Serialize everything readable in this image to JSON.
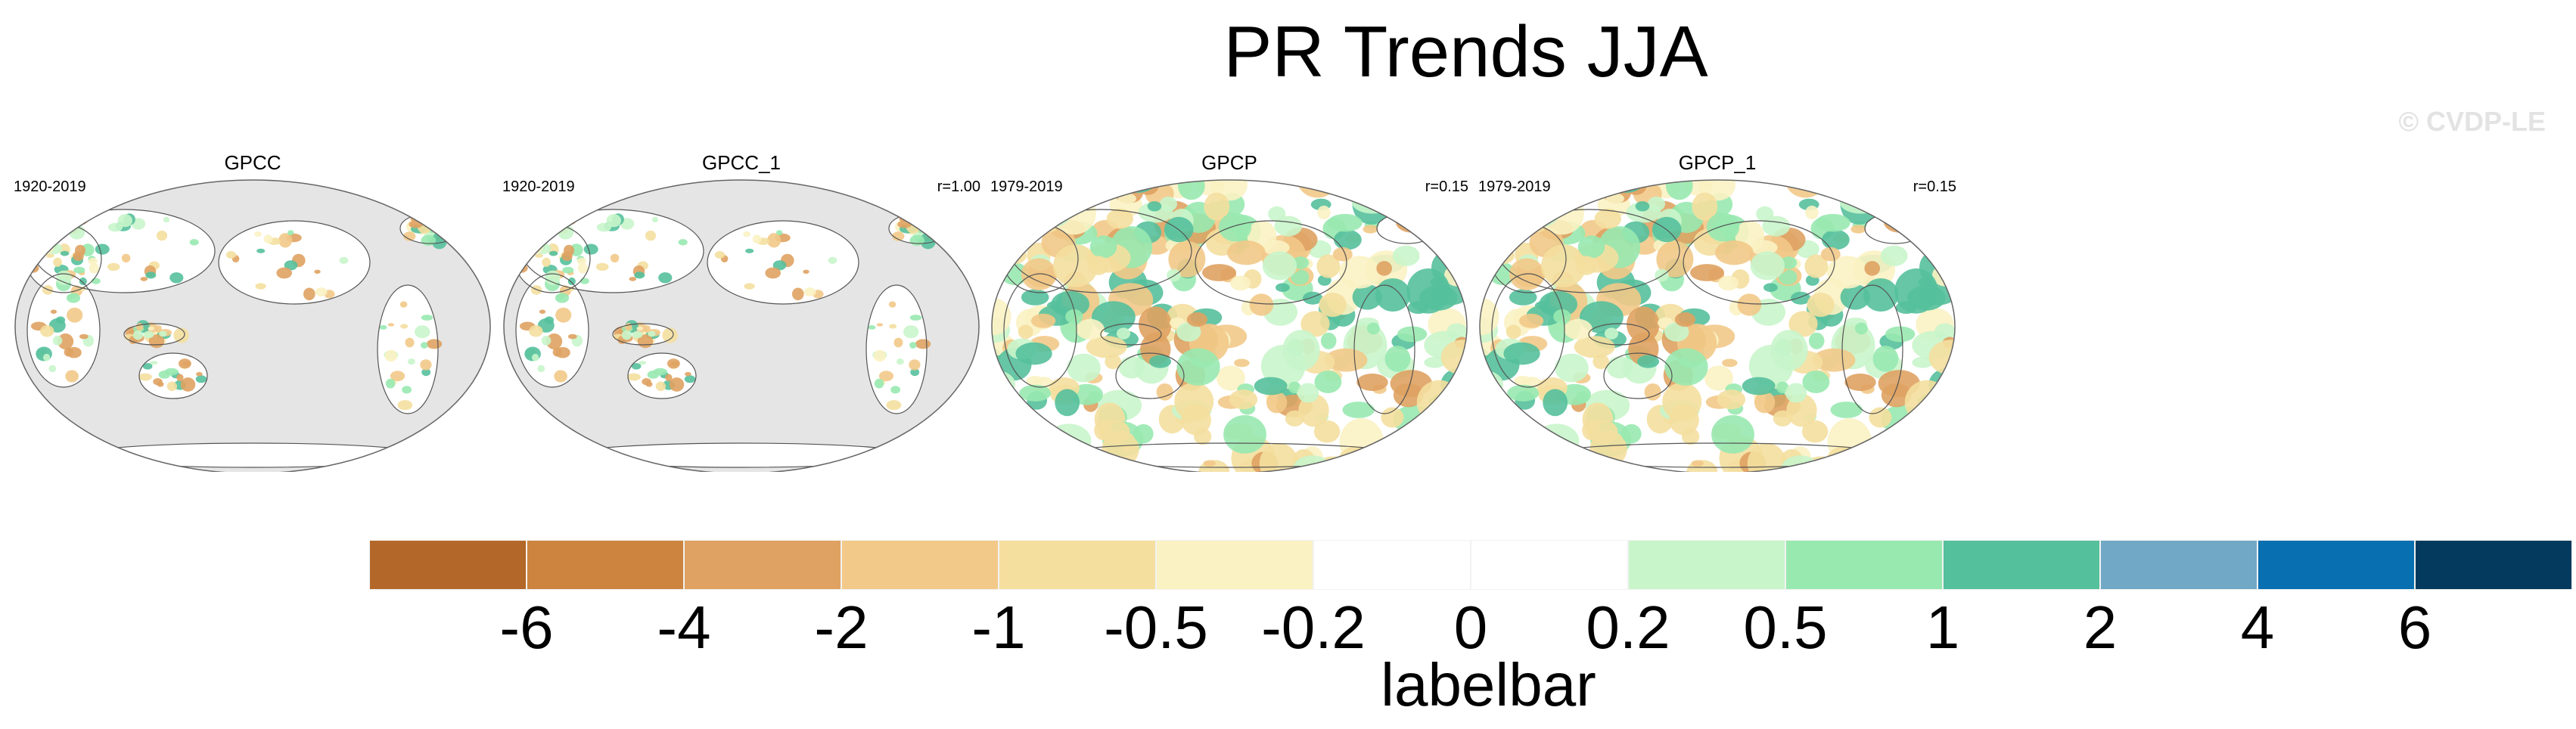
{
  "title": "PR Trends JJA",
  "watermark": "© CVDP-LE",
  "panels": [
    {
      "name": "GPCC",
      "period": "1920-2019",
      "r": "",
      "coverage": "land"
    },
    {
      "name": "GPCC_1",
      "period": "1920-2019",
      "r": "r=1.00",
      "coverage": "land"
    },
    {
      "name": "GPCP",
      "period": "1979-2019",
      "r": "r=0.15",
      "coverage": "global"
    },
    {
      "name": "GPCP_1",
      "period": "1979-2019",
      "r": "r=0.15",
      "coverage": "global"
    }
  ],
  "colors": {
    "missing": "#e5e5e5",
    "bins": [
      "#b3682a",
      "#cc843f",
      "#dfa262",
      "#f2c988",
      "#f4df9e",
      "#fbf2c3",
      "#ffffff",
      "#ffffff",
      "#c9f5cb",
      "#98e9b0",
      "#55c09c",
      "#71a8c6",
      "#086fb0",
      "#033a5e"
    ]
  },
  "labelbar": {
    "ticks": [
      "-6",
      "-4",
      "-2",
      "-1",
      "-0.5",
      "-0.2",
      "0",
      "0.2",
      "0.5",
      "1",
      "2",
      "4",
      "6"
    ],
    "title": "labelbar"
  }
}
